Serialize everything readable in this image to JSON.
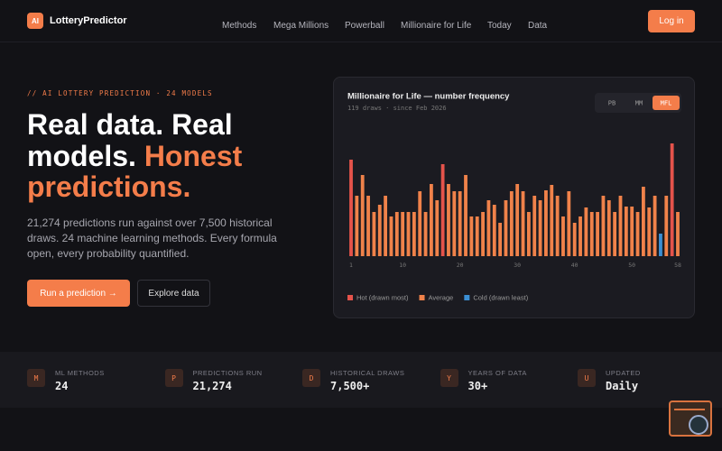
{
  "header": {
    "logo_badge": "AI",
    "brand": "LotteryPredictor",
    "nav": [
      "Methods",
      "Mega Millions",
      "Powerball",
      "Millionaire for Life",
      "Today",
      "Data"
    ],
    "login": "Log in"
  },
  "hero": {
    "eyebrow": "// AI LOTTERY PREDICTION · 24 MODELS",
    "headline_1": "Real data. Real",
    "headline_2": "models.",
    "headline_3": "Honest",
    "headline_4": "predictions.",
    "paragraph": [
      "21,274 predictions run against over 7,500 historical",
      "draws. 24 machine learning methods. Every formula",
      "open, every probability quantified."
    ],
    "primary_button": "Run a prediction →",
    "secondary_button": "Explore data"
  },
  "chart_data": {
    "type": "bar",
    "title": "Millionaire for Life — number frequency",
    "subtitle": "119 draws · since Feb 2026",
    "toggles": [
      "PB",
      "MM",
      "MFL"
    ],
    "active_toggle": "MFL",
    "x": [
      1,
      2,
      3,
      4,
      5,
      6,
      7,
      8,
      9,
      10,
      11,
      12,
      13,
      14,
      15,
      16,
      17,
      18,
      19,
      20,
      21,
      22,
      23,
      24,
      25,
      26,
      27,
      28,
      29,
      30,
      31,
      32,
      33,
      34,
      35,
      36,
      37,
      38,
      39,
      40,
      41,
      42,
      43,
      44,
      45,
      46,
      47,
      48,
      49,
      50,
      51,
      52,
      53,
      54,
      55,
      56,
      57,
      58
    ],
    "xlim": [
      1,
      58
    ],
    "xticks": [
      1,
      10,
      20,
      30,
      40,
      50,
      58
    ],
    "ylim": [
      0,
      130
    ],
    "series": [
      {
        "name": "Hot (drawn most)",
        "color": "#e5534b",
        "values": [
          107,
          null,
          null,
          null,
          null,
          null,
          null,
          null,
          null,
          null,
          null,
          null,
          null,
          null,
          null,
          null,
          102,
          null,
          null,
          null,
          null,
          null,
          null,
          null,
          null,
          null,
          null,
          null,
          null,
          null,
          null,
          null,
          null,
          null,
          null,
          null,
          null,
          null,
          null,
          null,
          null,
          null,
          null,
          null,
          null,
          null,
          null,
          null,
          null,
          null,
          null,
          null,
          null,
          null,
          null,
          null,
          125,
          null
        ]
      },
      {
        "name": "Average",
        "color": "#f0824a",
        "values": [
          null,
          67,
          90,
          67,
          49,
          57,
          67,
          44,
          49,
          49,
          49,
          49,
          72,
          49,
          80,
          62,
          null,
          80,
          72,
          72,
          90,
          44,
          44,
          49,
          62,
          57,
          37,
          62,
          72,
          80,
          72,
          49,
          67,
          62,
          73,
          79,
          67,
          44,
          72,
          37,
          44,
          54,
          49,
          49,
          67,
          62,
          49,
          67,
          55,
          55,
          49,
          77,
          54,
          67,
          null,
          67,
          null,
          49
        ]
      },
      {
        "name": "Cold (drawn least)",
        "color": "#3b8fd4",
        "values": [
          null,
          null,
          null,
          null,
          null,
          null,
          null,
          null,
          null,
          null,
          null,
          null,
          null,
          null,
          null,
          null,
          null,
          null,
          null,
          null,
          null,
          null,
          null,
          null,
          null,
          null,
          null,
          null,
          null,
          null,
          null,
          null,
          null,
          null,
          null,
          null,
          null,
          null,
          null,
          null,
          null,
          null,
          null,
          null,
          null,
          null,
          null,
          null,
          null,
          null,
          null,
          null,
          null,
          null,
          25,
          null,
          null,
          null
        ]
      }
    ]
  },
  "stats": [
    {
      "icon": "M",
      "label": "ML METHODS",
      "value": "24"
    },
    {
      "icon": "P",
      "label": "PREDICTIONS RUN",
      "value": "21,274"
    },
    {
      "icon": "D",
      "label": "HISTORICAL DRAWS",
      "value": "7,500+"
    },
    {
      "icon": "Y",
      "label": "YEARS OF DATA",
      "value": "30+"
    },
    {
      "icon": "U",
      "label": "UPDATED",
      "value": "Daily"
    }
  ]
}
